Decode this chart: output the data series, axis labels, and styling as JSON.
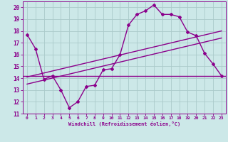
{
  "x_hours": [
    0,
    1,
    2,
    3,
    4,
    5,
    6,
    7,
    8,
    9,
    10,
    11,
    12,
    13,
    14,
    15,
    16,
    17,
    18,
    19,
    20,
    21,
    22,
    23
  ],
  "windchill": [
    17.7,
    16.5,
    13.9,
    14.2,
    13.0,
    11.5,
    12.0,
    13.3,
    13.4,
    14.7,
    14.8,
    16.0,
    18.5,
    19.4,
    19.7,
    20.2,
    19.4,
    19.4,
    19.2,
    17.9,
    17.6,
    16.1,
    15.2,
    14.2
  ],
  "flat_line_y": 14.2,
  "diag_line1_x": [
    0,
    23
  ],
  "diag_line1_y": [
    13.5,
    17.4
  ],
  "diag_line2_x": [
    0,
    23
  ],
  "diag_line2_y": [
    14.1,
    18.0
  ],
  "ylim": [
    11,
    20.5
  ],
  "xlim": [
    -0.5,
    23.5
  ],
  "yticks": [
    11,
    12,
    13,
    14,
    15,
    16,
    17,
    18,
    19,
    20
  ],
  "xticks": [
    0,
    1,
    2,
    3,
    4,
    5,
    6,
    7,
    8,
    9,
    10,
    11,
    12,
    13,
    14,
    15,
    16,
    17,
    18,
    19,
    20,
    21,
    22,
    23
  ],
  "xlabel": "Windchill (Refroidissement éolien,°C)",
  "line_color": "#8B008B",
  "bg_color": "#cce8e8",
  "grid_color": "#aacaca",
  "marker": "D",
  "marker_size": 2.0,
  "line_width": 1.0
}
